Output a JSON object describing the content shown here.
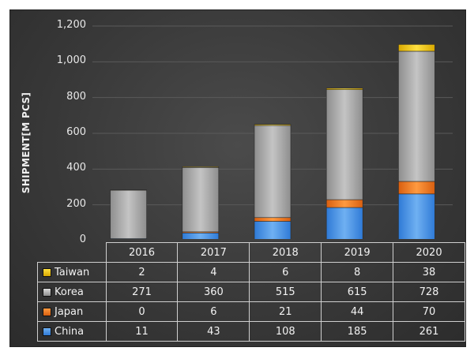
{
  "chart_data": {
    "type": "bar",
    "stacked": true,
    "categories": [
      "2016",
      "2017",
      "2018",
      "2019",
      "2020"
    ],
    "series": [
      {
        "name": "China",
        "values": [
          11,
          43,
          108,
          185,
          261
        ]
      },
      {
        "name": "Japan",
        "values": [
          0,
          6,
          21,
          44,
          70
        ]
      },
      {
        "name": "Korea",
        "values": [
          271,
          360,
          515,
          615,
          728
        ]
      },
      {
        "name": "Taiwan",
        "values": [
          2,
          4,
          6,
          8,
          38
        ]
      }
    ],
    "legend_order": [
      "Taiwan",
      "Korea",
      "Japan",
      "China"
    ],
    "ylabel": "SHIPMENT[M PCS]",
    "ylim": [
      0,
      1200
    ],
    "yticks": [
      "0",
      "200",
      "400",
      "600",
      "800",
      "1,000",
      "1,200"
    ],
    "legend_placement": "data-table-left",
    "grid": true,
    "colors": {
      "China": "#4a90e2",
      "Japan": "#f07820",
      "Korea": "#a9a9a9",
      "Taiwan": "#f5c400",
      "background": "#3a3a3a"
    }
  }
}
